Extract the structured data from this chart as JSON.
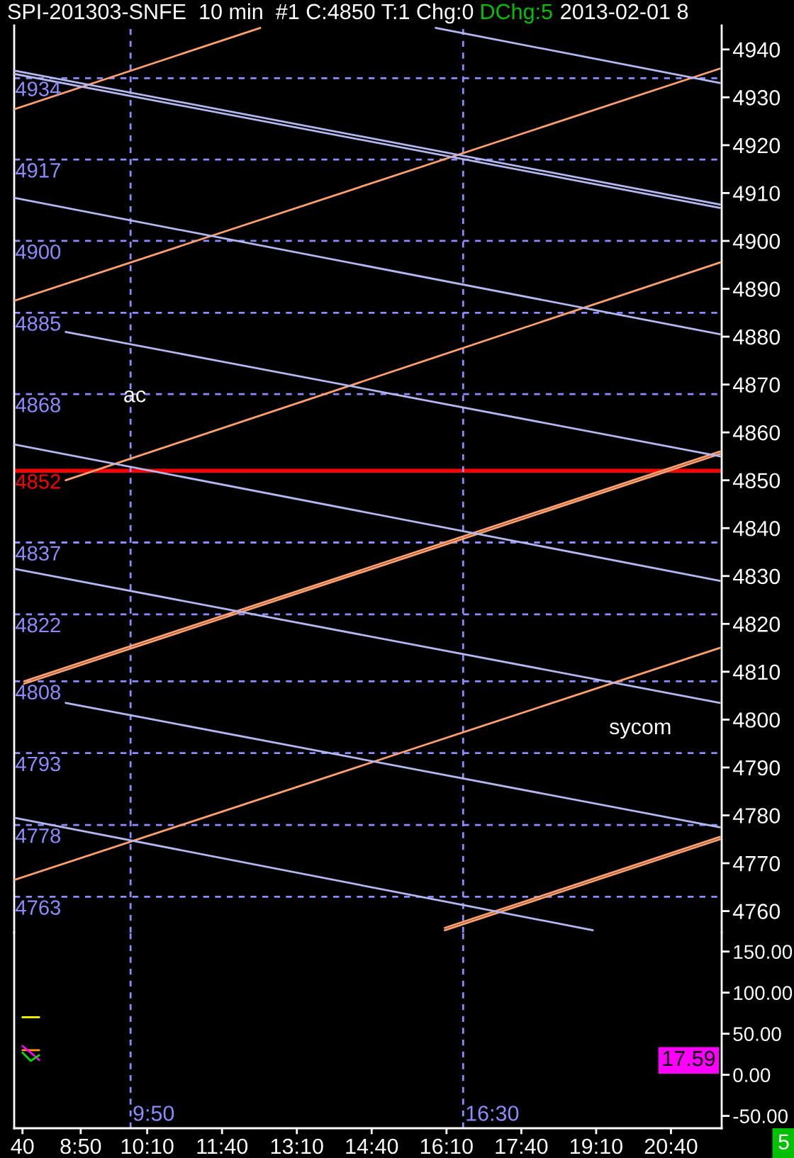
{
  "chart_data": [
    {
      "type": "line",
      "title": "SPI-201303-SNFE  10 min  #1 C:4850 T:1 Chg:0",
      "subtitle": "DChg:5",
      "annotations": [
        "2013-02-01 8",
        "sycom",
        {
          "text": "ac",
          "x": "2013-02-01T09:55",
          "y": 4867.5
        }
      ],
      "xlim": [
        "2013-02-01T07:30",
        "2013-02-01T21:41"
      ],
      "ylim": [
        4755.5,
        4945
      ],
      "yticks": [
        4760,
        4770,
        4780,
        4790,
        4800,
        4810,
        4820,
        4830,
        4840,
        4850,
        4860,
        4870,
        4880,
        4890,
        4900,
        4910,
        4920,
        4930,
        4940
      ],
      "tick_labels": "y",
      "series": [
        {
          "color": "#ffa06e",
          "x": [
            "2013-02-01T07:30",
            "2013-02-01T12:26"
          ],
          "values": [
            4927.5,
            4944.5
          ]
        },
        {
          "color": "#ffa06e",
          "x": [
            "2013-02-01T07:30",
            "2013-02-01T21:39"
          ],
          "values": [
            4887.5,
            4936.0
          ]
        },
        {
          "color": "#ffa06e",
          "x": [
            "2013-02-01T08:32",
            "2013-02-01T21:39"
          ],
          "values": [
            4850.0,
            4895.5
          ]
        },
        {
          "color": "#ffa06e",
          "x": [
            "2013-02-01T07:42",
            "2013-02-01T21:39"
          ],
          "values": [
            4807.5,
            4855.5
          ]
        },
        {
          "color": "#ffa06e",
          "x": [
            "2013-02-01T07:42",
            "2013-02-01T21:39"
          ],
          "values": [
            4808.0,
            4856.0
          ]
        },
        {
          "color": "#ffa06e",
          "x": [
            "2013-02-01T07:30",
            "2013-02-01T21:39"
          ],
          "values": [
            4766.5,
            4815.0
          ]
        },
        {
          "color": "#ffa06e",
          "x": [
            "2013-02-01T16:08",
            "2013-02-01T21:39"
          ],
          "values": [
            4756.0,
            4775.0
          ]
        },
        {
          "color": "#ffa06e",
          "x": [
            "2013-02-01T16:08",
            "2013-02-01T21:39"
          ],
          "values": [
            4756.5,
            4775.5
          ]
        },
        {
          "color": "#b4b8f0",
          "x": [
            "2013-02-01T15:57",
            "2013-02-01T21:39"
          ],
          "values": [
            4944.5,
            4933.0
          ]
        },
        {
          "color": "#b4b8f0",
          "x": [
            "2013-02-01T07:30",
            "2013-02-01T21:39"
          ],
          "values": [
            4935.6,
            4907.6
          ]
        },
        {
          "color": "#b4b8f0",
          "x": [
            "2013-02-01T07:30",
            "2013-02-01T21:39"
          ],
          "values": [
            4934.9,
            4906.9
          ]
        },
        {
          "color": "#b4b8f0",
          "x": [
            "2013-02-01T07:30",
            "2013-02-01T21:39"
          ],
          "values": [
            4909.0,
            4880.5
          ]
        },
        {
          "color": "#b4b8f0",
          "x": [
            "2013-02-01T08:32",
            "2013-02-01T21:39"
          ],
          "values": [
            4881.0,
            4855.0
          ]
        },
        {
          "color": "#b4b8f0",
          "x": [
            "2013-02-01T07:30",
            "2013-02-01T21:39"
          ],
          "values": [
            4857.5,
            4829.0
          ]
        },
        {
          "color": "#b4b8f0",
          "x": [
            "2013-02-01T07:30",
            "2013-02-01T21:39"
          ],
          "values": [
            4831.5,
            4803.5
          ]
        },
        {
          "color": "#b4b8f0",
          "x": [
            "2013-02-01T08:32",
            "2013-02-01T21:39"
          ],
          "values": [
            4803.5,
            4777.5
          ]
        },
        {
          "color": "#b4b8f0",
          "x": [
            "2013-02-01T07:30",
            "2013-02-01T19:06"
          ],
          "values": [
            4779.5,
            4756.0
          ]
        }
      ],
      "ref_lines": [
        {
          "axis": "y",
          "value": 4934,
          "label": "4934",
          "color": "#8c8cff",
          "line_style": "dashed"
        },
        {
          "axis": "y",
          "value": 4917,
          "label": "4917",
          "color": "#8c8cff",
          "line_style": "dashed"
        },
        {
          "axis": "y",
          "value": 4900,
          "label": "4900",
          "color": "#8c8cff",
          "line_style": "dashed"
        },
        {
          "axis": "y",
          "value": 4885,
          "label": "4885",
          "color": "#8c8cff",
          "line_style": "dashed"
        },
        {
          "axis": "y",
          "value": 4868,
          "label": "4868",
          "color": "#8c8cff",
          "line_style": "dashed"
        },
        {
          "axis": "y",
          "value": 4852,
          "label": "4852",
          "color": "#ff0000",
          "line_style": "solid"
        },
        {
          "axis": "y",
          "value": 4837,
          "label": "4837",
          "color": "#8c8cff",
          "line_style": "dashed"
        },
        {
          "axis": "y",
          "value": 4822,
          "label": "4822",
          "color": "#8c8cff",
          "line_style": "dashed"
        },
        {
          "axis": "y",
          "value": 4808,
          "label": "4808",
          "color": "#8c8cff",
          "line_style": "dashed"
        },
        {
          "axis": "y",
          "value": 4793,
          "label": "4793",
          "color": "#8c8cff",
          "line_style": "dashed"
        },
        {
          "axis": "y",
          "value": 4778,
          "label": "4778",
          "color": "#8c8cff",
          "line_style": "dashed"
        },
        {
          "axis": "y",
          "value": 4763,
          "label": "4763",
          "color": "#8c8cff",
          "line_style": "dashed"
        },
        {
          "axis": "x",
          "value": "2013-02-01T09:50",
          "color": "#8c8cff",
          "line_style": "dashed"
        },
        {
          "axis": "x",
          "value": "2013-02-01T16:30",
          "color": "#8c8cff",
          "line_style": "dashed"
        }
      ]
    },
    {
      "type": "line",
      "annotations": [
        {
          "text": "17.59",
          "y": 17.59
        },
        "5"
      ],
      "xlim": [
        "2013-02-01T07:30",
        "2013-02-01T21:41"
      ],
      "ylim": [
        -65,
        173
      ],
      "xticks": [
        {
          "value": "2013-02-01T07:40",
          "label": "40"
        },
        {
          "value": "2013-02-01T08:50",
          "label": "8:50"
        },
        {
          "value": "2013-02-01T10:10",
          "label": "10:10"
        },
        {
          "value": "2013-02-01T11:40",
          "label": "11:40"
        },
        {
          "value": "2013-02-01T13:10",
          "label": "13:10"
        },
        {
          "value": "2013-02-01T14:40",
          "label": "14:40"
        },
        {
          "value": "2013-02-01T16:10",
          "label": "16:10"
        },
        {
          "value": "2013-02-01T17:40",
          "label": "17:40"
        },
        {
          "value": "2013-02-01T19:10",
          "label": "19:10"
        },
        {
          "value": "2013-02-01T20:40",
          "label": "20:40"
        }
      ],
      "yticks": [
        {
          "value": 150,
          "label": "150.00"
        },
        {
          "value": 100,
          "label": "100.00"
        },
        {
          "value": 50,
          "label": "50.00"
        },
        {
          "value": 0,
          "label": "0.00"
        },
        {
          "value": -50,
          "label": "-50.00"
        }
      ],
      "series": [
        {
          "color": "#ffff00",
          "x": [
            "2013-02-01T07:40",
            "2013-02-01T08:00"
          ],
          "values": [
            70,
            70
          ]
        },
        {
          "color": "#ff9900",
          "x": [
            "2013-02-01T07:40",
            "2013-02-01T08:00"
          ],
          "values": [
            30,
            30
          ]
        },
        {
          "color": "#ff00ff",
          "x": [
            "2013-02-01T07:40",
            "2013-02-01T07:50",
            "2013-02-01T08:00"
          ],
          "values": [
            35,
            27,
            18
          ]
        },
        {
          "color": "#00e000",
          "x": [
            "2013-02-01T07:40",
            "2013-02-01T07:50",
            "2013-02-01T08:00"
          ],
          "values": [
            27,
            17,
            24
          ]
        }
      ],
      "ref_lines": [
        {
          "axis": "x",
          "value": "2013-02-01T09:50",
          "label": "9:50",
          "color": "#8c8cff",
          "line_style": "dashed"
        },
        {
          "axis": "x",
          "value": "2013-02-01T16:30",
          "label": "16:30",
          "color": "#8c8cff",
          "line_style": "dashed"
        }
      ]
    }
  ]
}
